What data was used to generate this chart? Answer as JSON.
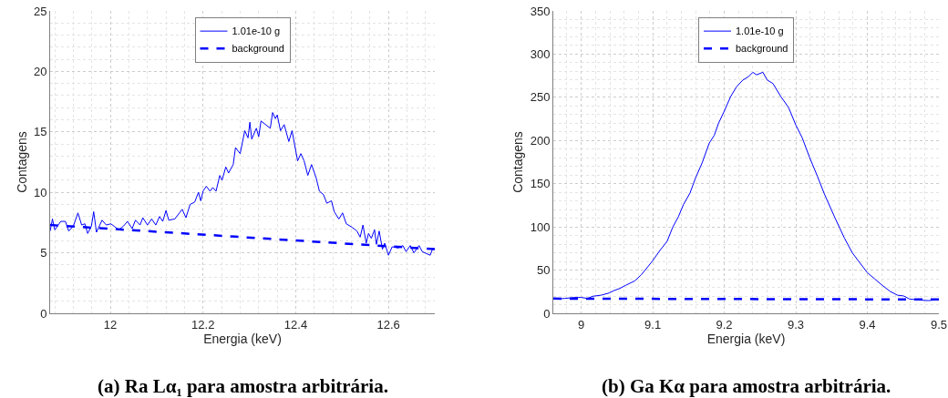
{
  "chart_data": [
    {
      "type": "line",
      "xlabel": "Energia (keV)",
      "ylabel": "Contagens",
      "annotations": [
        "(a) Ra Lα₁ para amostra arbitrária."
      ],
      "xlim": [
        11.87,
        12.7
      ],
      "xticks": [
        12,
        12.2,
        12.4,
        12.6
      ],
      "ylim": [
        0,
        25
      ],
      "yticks": [
        0,
        5,
        10,
        15,
        20,
        25
      ],
      "grid": true,
      "legend": "top",
      "marker": "none",
      "series": [
        {
          "name": "1.01e-10 g",
          "color": "#0000ff",
          "line_style": "solid",
          "x": [
            11.87,
            11.875,
            11.88,
            11.893,
            11.903,
            11.91,
            11.92,
            11.93,
            11.938,
            11.945,
            11.951,
            11.959,
            11.964,
            11.97,
            11.982,
            11.991,
            12.001,
            12.008,
            12.018,
            12.028,
            12.037,
            12.047,
            12.054,
            12.064,
            12.07,
            12.08,
            12.089,
            12.098,
            12.106,
            12.113,
            12.12,
            12.126,
            12.139,
            12.149,
            12.155,
            12.163,
            12.172,
            12.182,
            12.19,
            12.195,
            12.2,
            12.207,
            12.215,
            12.221,
            12.228,
            12.236,
            12.241,
            12.249,
            12.255,
            12.265,
            12.27,
            12.28,
            12.29,
            12.297,
            12.301,
            12.305,
            12.315,
            12.32,
            12.325,
            12.345,
            12.35,
            12.356,
            12.36,
            12.367,
            12.375,
            12.385,
            12.392,
            12.404,
            12.411,
            12.418,
            12.426,
            12.434,
            12.444,
            12.451,
            12.46,
            12.467,
            12.477,
            12.483,
            12.493,
            12.501,
            12.509,
            12.522,
            12.532,
            12.539,
            12.545,
            12.552,
            12.557,
            12.563,
            12.57,
            12.574,
            12.58,
            12.587,
            12.592,
            12.6,
            12.608,
            12.621,
            12.631,
            12.638,
            12.647,
            12.655,
            12.666,
            12.673,
            12.69,
            12.695,
            12.7
          ],
          "values": [
            6.8,
            7.8,
            6.9,
            7.6,
            7.6,
            6.8,
            7.2,
            8.3,
            7.3,
            7.4,
            6.6,
            7.2,
            8.4,
            6.7,
            7.7,
            7.3,
            7.4,
            7.2,
            6.9,
            7.2,
            7.6,
            7.0,
            7.7,
            7.3,
            7.9,
            7.3,
            7.8,
            7.3,
            8.0,
            7.6,
            8.5,
            7.7,
            7.8,
            8.3,
            8.6,
            7.9,
            9.0,
            9.2,
            10.0,
            9.3,
            10.1,
            10.5,
            10.1,
            10.4,
            10.1,
            11.4,
            11.0,
            12.1,
            11.6,
            12.3,
            13.7,
            13.2,
            15.1,
            14.5,
            15.8,
            14.4,
            15.3,
            14.6,
            15.9,
            15.3,
            16.6,
            16.1,
            16.4,
            15.1,
            15.6,
            14.2,
            15.1,
            12.6,
            13.2,
            12.6,
            11.4,
            12.3,
            11.2,
            10.1,
            9.8,
            9.1,
            9.3,
            8.4,
            7.8,
            8.3,
            7.4,
            7.1,
            6.8,
            6.3,
            7.3,
            5.8,
            6.6,
            6.2,
            6.9,
            5.7,
            6.8,
            5.3,
            5.8,
            4.8,
            5.5,
            5.4,
            5.6,
            5.1,
            5.6,
            5.0,
            5.6,
            5.1,
            4.8,
            5.3,
            5.3
          ]
        },
        {
          "name": "background",
          "color": "#0000ff",
          "line_style": "dashed",
          "x": [
            11.87,
            12.7
          ],
          "values": [
            7.3,
            5.3
          ]
        }
      ]
    },
    {
      "type": "line",
      "xlabel": "Energia (keV)",
      "ylabel": "Contagens",
      "annotations": [
        "(b) Ga Kα para amostra arbitrária."
      ],
      "xlim": [
        8.961,
        9.5
      ],
      "xticks": [
        9,
        9.1,
        9.2,
        9.3,
        9.4,
        9.5
      ],
      "ylim": [
        0,
        350
      ],
      "yticks": [
        0,
        50,
        100,
        150,
        200,
        250,
        300,
        350
      ],
      "grid": true,
      "legend": "top",
      "marker": "none",
      "series": [
        {
          "name": "1.01e-10 g",
          "color": "#0000ff",
          "line_style": "solid",
          "x": [
            8.961,
            8.977,
            8.99,
            9.0,
            9.009,
            9.016,
            9.028,
            9.039,
            9.045,
            9.054,
            9.062,
            9.075,
            9.084,
            9.092,
            9.1,
            9.11,
            9.12,
            9.128,
            9.136,
            9.143,
            9.152,
            9.16,
            9.169,
            9.179,
            9.186,
            9.192,
            9.2,
            9.209,
            9.217,
            9.226,
            9.234,
            9.24,
            9.245,
            9.254,
            9.26,
            9.268,
            9.279,
            9.29,
            9.3,
            9.309,
            9.319,
            9.33,
            9.34,
            9.355,
            9.368,
            9.379,
            9.389,
            9.4,
            9.41,
            9.421,
            9.432,
            9.442,
            9.451,
            9.459,
            9.472,
            9.485,
            9.5
          ],
          "values": [
            16.5,
            17.2,
            18.3,
            18.3,
            17.2,
            19.7,
            21,
            23.5,
            26,
            28.8,
            32.3,
            37.6,
            44.6,
            52.7,
            61,
            72.7,
            83.2,
            99.7,
            112,
            126,
            139,
            157,
            174,
            197,
            206,
            220,
            234,
            251,
            262,
            270,
            274,
            279,
            276,
            279,
            270,
            266,
            251,
            238,
            218,
            203,
            181,
            159,
            138,
            110,
            87,
            70,
            59,
            47,
            40,
            32.3,
            25.3,
            21,
            20,
            16.5,
            15.4,
            14.7,
            15.8
          ]
        },
        {
          "name": "background",
          "color": "#0000ff",
          "line_style": "dashed",
          "x": [
            8.961,
            9.5
          ],
          "values": [
            17,
            16
          ]
        }
      ]
    }
  ]
}
